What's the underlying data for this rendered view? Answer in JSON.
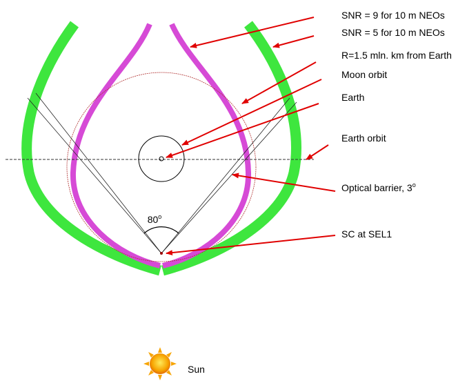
{
  "labels": {
    "snr9": "SNR = 9 for 10 m NEOs",
    "snr5": "SNR = 5 for 10 m NEOs",
    "radius": "R=1.5 mln. km from Earth",
    "moon_orbit": "Moon orbit",
    "earth": "Earth",
    "earth_orbit": "Earth orbit",
    "optical_barrier": {
      "text": "Optical barrier, 3",
      "superscript": "o"
    },
    "spacecraft": "SC at SEL1",
    "sun": "Sun"
  },
  "angle": {
    "text": "80",
    "superscript": "o"
  }
}
